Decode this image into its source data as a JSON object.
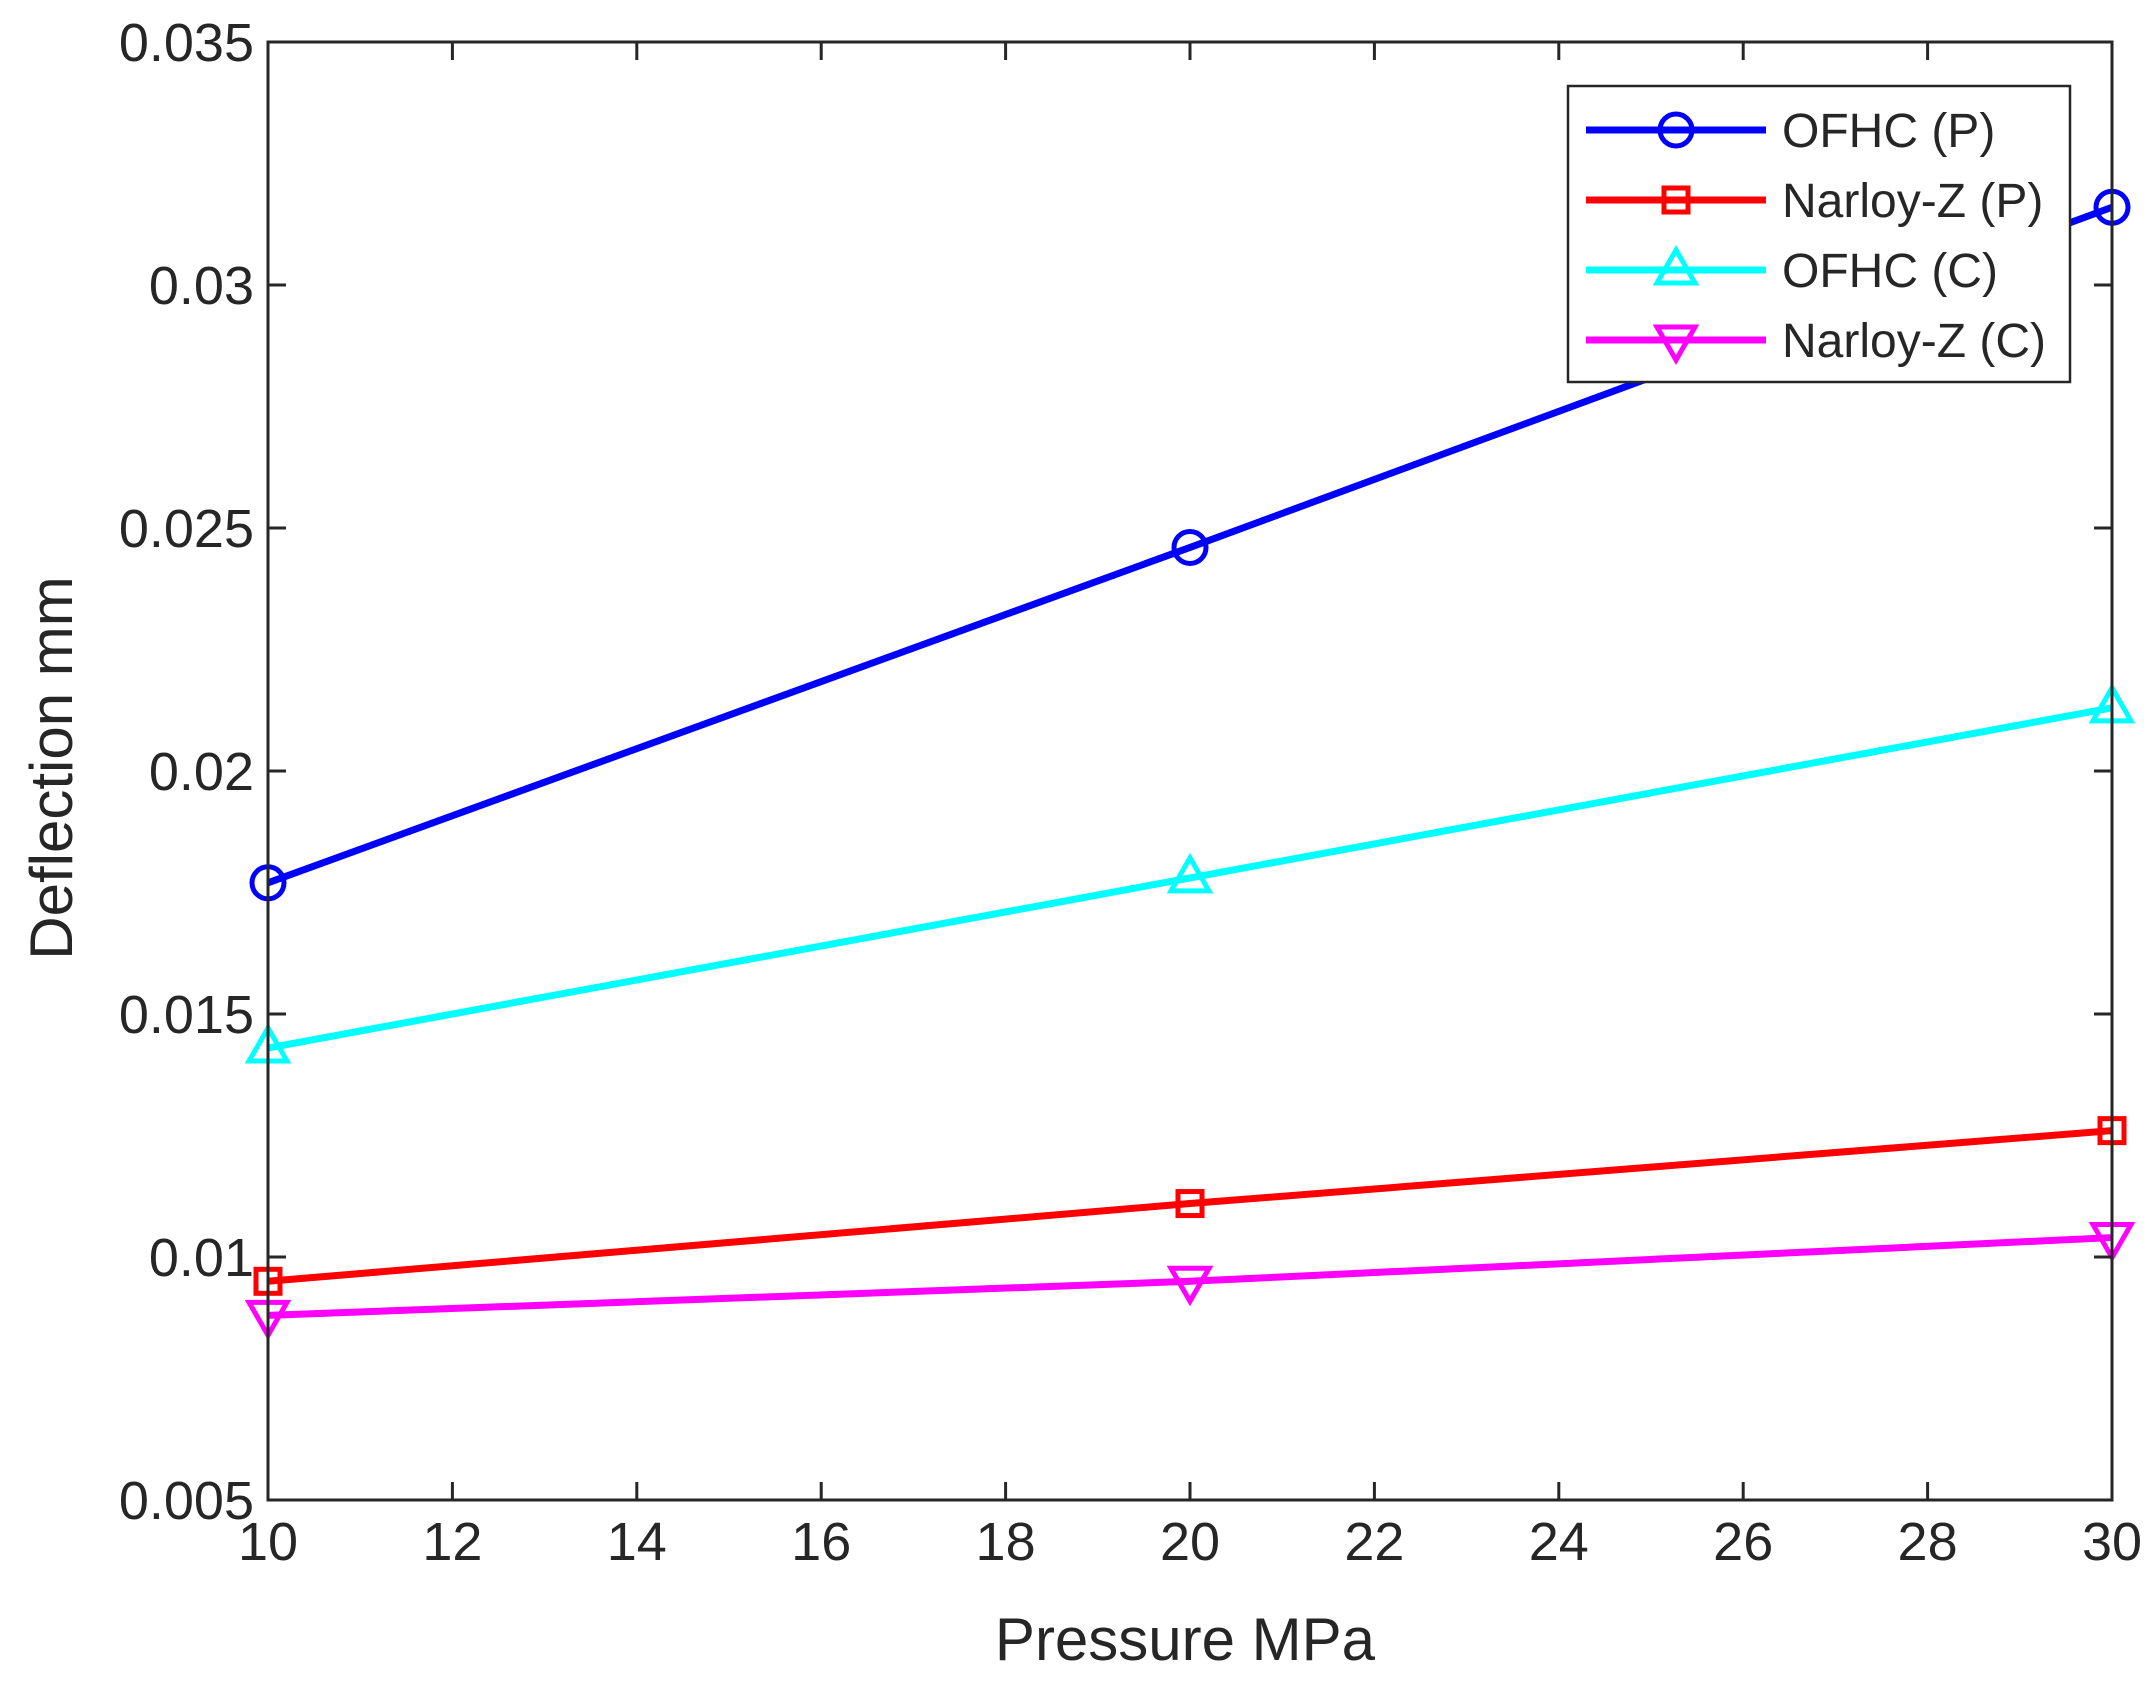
{
  "chart_data": {
    "type": "line",
    "title": "",
    "xlabel": "Pressure MPa",
    "ylabel": "Deflection mm",
    "xlim": [
      10,
      30
    ],
    "ylim": [
      0.005,
      0.035
    ],
    "xticks": [
      10,
      12,
      14,
      16,
      18,
      20,
      22,
      24,
      26,
      28,
      30
    ],
    "xtick_labels": [
      "10",
      "12",
      "14",
      "16",
      "18",
      "20",
      "22",
      "24",
      "26",
      "28",
      "30"
    ],
    "yticks": [
      0.005,
      0.01,
      0.015,
      0.02,
      0.025,
      0.03,
      0.035
    ],
    "ytick_labels": [
      "0.005",
      "0.01",
      "0.015",
      "0.02",
      "0.025",
      "0.03",
      "0.035"
    ],
    "grid": false,
    "legend_position": "top-right",
    "x": [
      10,
      20,
      30
    ],
    "series": [
      {
        "name": "OFHC (P)",
        "color": "#0000ff",
        "marker": "circle",
        "values": [
          0.0177,
          0.0246,
          0.0316
        ]
      },
      {
        "name": "Narloy-Z (P)",
        "color": "#ff0000",
        "marker": "square",
        "values": [
          0.0095,
          0.0111,
          0.0126
        ]
      },
      {
        "name": "OFHC (C)",
        "color": "#00ffff",
        "marker": "triangle-up",
        "values": [
          0.0143,
          0.0178,
          0.0213
        ]
      },
      {
        "name": "Narloy-Z (C)",
        "color": "#ff00ff",
        "marker": "triangle-down",
        "values": [
          0.0088,
          0.0095,
          0.0104
        ]
      }
    ]
  }
}
